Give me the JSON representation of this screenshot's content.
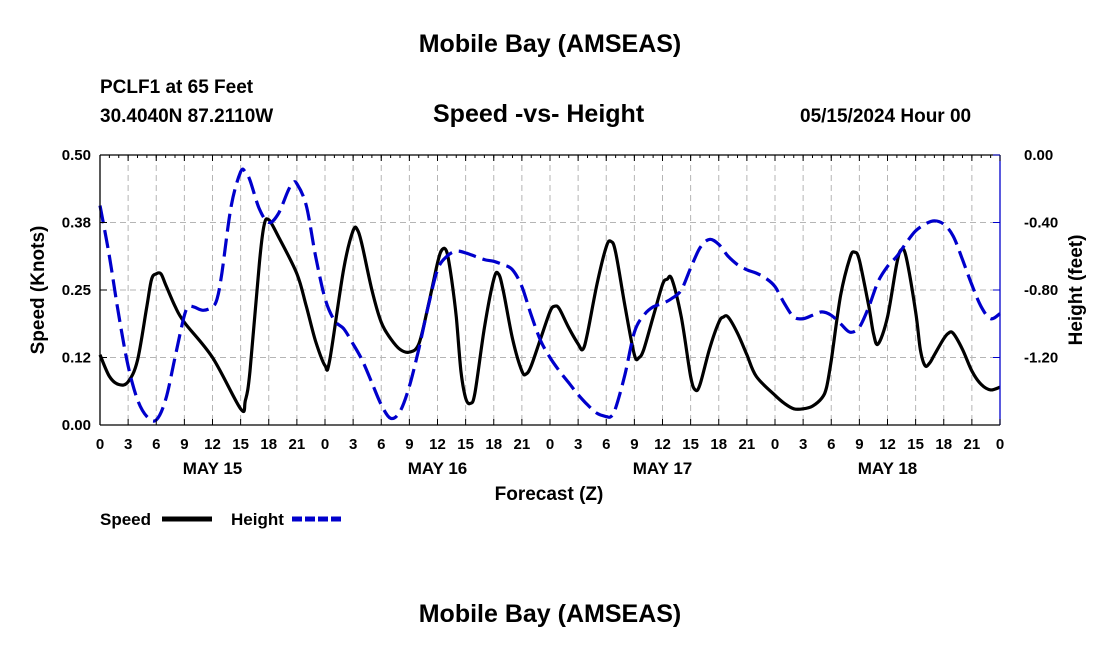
{
  "page": {
    "title_top": "Mobile Bay (AMSEAS)",
    "title_bottom": "Mobile Bay (AMSEAS)",
    "station": "PCLF1 at 65 Feet",
    "coords": "30.4040N  87.2110W",
    "datetime": "05/15/2024 Hour 00"
  },
  "chart_data": {
    "type": "line",
    "title": "Speed -vs- Height",
    "xlabel": "Forecast (Z)",
    "ylabel_left": "Speed (Knots)",
    "ylabel_right": "Height (feet)",
    "x_range_hours": [
      0,
      96
    ],
    "x_tick_step_hours": 3,
    "x_tick_labels": [
      "0",
      "3",
      "6",
      "9",
      "12",
      "15",
      "18",
      "21",
      "0",
      "3",
      "6",
      "9",
      "12",
      "15",
      "18",
      "21",
      "0",
      "3",
      "6",
      "9",
      "12",
      "15",
      "18",
      "21",
      "0",
      "3",
      "6",
      "9",
      "12",
      "15",
      "18",
      "21",
      "0"
    ],
    "date_labels": [
      {
        "hour": 12,
        "label": "MAY 15"
      },
      {
        "hour": 36,
        "label": "MAY 16"
      },
      {
        "hour": 60,
        "label": "MAY 17"
      },
      {
        "hour": 84,
        "label": "MAY 18"
      }
    ],
    "ylim_left": [
      0,
      0.5
    ],
    "yticks_left": [
      "0.00",
      "0.12",
      "0.25",
      "0.38",
      "0.50"
    ],
    "ylim_right": [
      -1.6,
      0.0
    ],
    "yticks_right": [
      "-1.20",
      "-0.80",
      "-0.40",
      "0.00"
    ],
    "grid": true,
    "legend_position": "bottom-left",
    "series": [
      {
        "name": "Speed",
        "axis": "left",
        "color": "#000000",
        "style": "solid",
        "points": [
          [
            0,
            0.13
          ],
          [
            1,
            0.09
          ],
          [
            2,
            0.075
          ],
          [
            3,
            0.08
          ],
          [
            4,
            0.12
          ],
          [
            5,
            0.22
          ],
          [
            5.5,
            0.27
          ],
          [
            6,
            0.28
          ],
          [
            6.5,
            0.28
          ],
          [
            7,
            0.26
          ],
          [
            8,
            0.22
          ],
          [
            9,
            0.19
          ],
          [
            12,
            0.125
          ],
          [
            15,
            0.03
          ],
          [
            15.5,
            0.045
          ],
          [
            16,
            0.1
          ],
          [
            17,
            0.3
          ],
          [
            17.5,
            0.37
          ],
          [
            18,
            0.38
          ],
          [
            19,
            0.35
          ],
          [
            21,
            0.28
          ],
          [
            22,
            0.22
          ],
          [
            23,
            0.155
          ],
          [
            24,
            0.11
          ],
          [
            24.5,
            0.12
          ],
          [
            26,
            0.29
          ],
          [
            27,
            0.36
          ],
          [
            27.5,
            0.36
          ],
          [
            28,
            0.33
          ],
          [
            29,
            0.25
          ],
          [
            30,
            0.19
          ],
          [
            31,
            0.16
          ],
          [
            32,
            0.14
          ],
          [
            33,
            0.135
          ],
          [
            34,
            0.15
          ],
          [
            35,
            0.22
          ],
          [
            36,
            0.3
          ],
          [
            36.5,
            0.325
          ],
          [
            37,
            0.32
          ],
          [
            37.5,
            0.27
          ],
          [
            38,
            0.2
          ],
          [
            38.5,
            0.1
          ],
          [
            39,
            0.05
          ],
          [
            39.5,
            0.04
          ],
          [
            40,
            0.06
          ],
          [
            41,
            0.18
          ],
          [
            42,
            0.27
          ],
          [
            42.5,
            0.28
          ],
          [
            43,
            0.25
          ],
          [
            44,
            0.16
          ],
          [
            45,
            0.1
          ],
          [
            45.5,
            0.095
          ],
          [
            46,
            0.11
          ],
          [
            47,
            0.16
          ],
          [
            48,
            0.21
          ],
          [
            48.5,
            0.22
          ],
          [
            49,
            0.215
          ],
          [
            50,
            0.18
          ],
          [
            51,
            0.15
          ],
          [
            51.5,
            0.14
          ],
          [
            52,
            0.17
          ],
          [
            53,
            0.26
          ],
          [
            54,
            0.33
          ],
          [
            54.5,
            0.34
          ],
          [
            55,
            0.32
          ],
          [
            56,
            0.22
          ],
          [
            57,
            0.13
          ],
          [
            57.5,
            0.125
          ],
          [
            58,
            0.14
          ],
          [
            59,
            0.2
          ],
          [
            60,
            0.26
          ],
          [
            60.5,
            0.27
          ],
          [
            61,
            0.27
          ],
          [
            62,
            0.2
          ],
          [
            63,
            0.09
          ],
          [
            63.5,
            0.065
          ],
          [
            64,
            0.075
          ],
          [
            65,
            0.14
          ],
          [
            66,
            0.19
          ],
          [
            66.5,
            0.2
          ],
          [
            67,
            0.2
          ],
          [
            68,
            0.17
          ],
          [
            69,
            0.13
          ],
          [
            70,
            0.09
          ],
          [
            72,
            0.055
          ],
          [
            73,
            0.04
          ],
          [
            74,
            0.03
          ],
          [
            75,
            0.03
          ],
          [
            76,
            0.035
          ],
          [
            77,
            0.05
          ],
          [
            77.5,
            0.07
          ],
          [
            78,
            0.12
          ],
          [
            79,
            0.24
          ],
          [
            80,
            0.31
          ],
          [
            80.5,
            0.32
          ],
          [
            81,
            0.305
          ],
          [
            82,
            0.22
          ],
          [
            82.5,
            0.17
          ],
          [
            83,
            0.15
          ],
          [
            84,
            0.2
          ],
          [
            85,
            0.3
          ],
          [
            85.5,
            0.325
          ],
          [
            86,
            0.31
          ],
          [
            87,
            0.21
          ],
          [
            87.5,
            0.14
          ],
          [
            88,
            0.11
          ],
          [
            88.5,
            0.115
          ],
          [
            89,
            0.13
          ],
          [
            90,
            0.16
          ],
          [
            90.5,
            0.17
          ],
          [
            91,
            0.17
          ],
          [
            92,
            0.14
          ],
          [
            93,
            0.1
          ],
          [
            94,
            0.075
          ],
          [
            95,
            0.065
          ],
          [
            96,
            0.07
          ]
        ]
      },
      {
        "name": "Height",
        "axis": "right",
        "color": "#0000cc",
        "style": "dashed",
        "points": [
          [
            0,
            -0.3
          ],
          [
            1,
            -0.6
          ],
          [
            2,
            -0.95
          ],
          [
            3,
            -1.25
          ],
          [
            4,
            -1.45
          ],
          [
            5,
            -1.55
          ],
          [
            6,
            -1.57
          ],
          [
            7,
            -1.45
          ],
          [
            8,
            -1.2
          ],
          [
            9,
            -0.95
          ],
          [
            9.5,
            -0.9
          ],
          [
            10,
            -0.9
          ],
          [
            11,
            -0.92
          ],
          [
            12,
            -0.9
          ],
          [
            12.5,
            -0.85
          ],
          [
            13,
            -0.7
          ],
          [
            14,
            -0.3
          ],
          [
            15,
            -0.1
          ],
          [
            15.5,
            -0.1
          ],
          [
            16,
            -0.15
          ],
          [
            17,
            -0.32
          ],
          [
            18,
            -0.4
          ],
          [
            19,
            -0.35
          ],
          [
            20,
            -0.22
          ],
          [
            20.5,
            -0.17
          ],
          [
            21,
            -0.17
          ],
          [
            22,
            -0.3
          ],
          [
            23,
            -0.6
          ],
          [
            24,
            -0.85
          ],
          [
            25,
            -0.98
          ],
          [
            26,
            -1.03
          ],
          [
            27,
            -1.12
          ],
          [
            28,
            -1.22
          ],
          [
            29,
            -1.35
          ],
          [
            30,
            -1.48
          ],
          [
            31,
            -1.56
          ],
          [
            32,
            -1.52
          ],
          [
            33,
            -1.37
          ],
          [
            34,
            -1.15
          ],
          [
            35,
            -0.9
          ],
          [
            36,
            -0.68
          ],
          [
            37,
            -0.6
          ],
          [
            38,
            -0.57
          ],
          [
            39,
            -0.58
          ],
          [
            40,
            -0.6
          ],
          [
            41,
            -0.62
          ],
          [
            42,
            -0.63
          ],
          [
            43,
            -0.65
          ],
          [
            44,
            -0.68
          ],
          [
            45,
            -0.78
          ],
          [
            46,
            -0.95
          ],
          [
            47,
            -1.1
          ],
          [
            48,
            -1.2
          ],
          [
            49,
            -1.28
          ],
          [
            50,
            -1.35
          ],
          [
            51,
            -1.42
          ],
          [
            52,
            -1.48
          ],
          [
            53,
            -1.53
          ],
          [
            54,
            -1.55
          ],
          [
            54.5,
            -1.55
          ],
          [
            55,
            -1.5
          ],
          [
            56,
            -1.3
          ],
          [
            57,
            -1.05
          ],
          [
            58,
            -0.95
          ],
          [
            59,
            -0.9
          ],
          [
            60,
            -0.88
          ],
          [
            61,
            -0.85
          ],
          [
            62,
            -0.8
          ],
          [
            63,
            -0.67
          ],
          [
            64,
            -0.55
          ],
          [
            65,
            -0.5
          ],
          [
            66,
            -0.53
          ],
          [
            67,
            -0.6
          ],
          [
            68,
            -0.65
          ],
          [
            69,
            -0.68
          ],
          [
            70,
            -0.7
          ],
          [
            71,
            -0.73
          ],
          [
            72,
            -0.78
          ],
          [
            73,
            -0.88
          ],
          [
            74,
            -0.96
          ],
          [
            75,
            -0.97
          ],
          [
            76,
            -0.95
          ],
          [
            77,
            -0.93
          ],
          [
            78,
            -0.95
          ],
          [
            79,
            -1.0
          ],
          [
            80,
            -1.05
          ],
          [
            81,
            -1.02
          ],
          [
            82,
            -0.9
          ],
          [
            83,
            -0.75
          ],
          [
            84,
            -0.66
          ],
          [
            85,
            -0.6
          ],
          [
            86,
            -0.52
          ],
          [
            87,
            -0.45
          ],
          [
            88,
            -0.41
          ],
          [
            89,
            -0.39
          ],
          [
            90,
            -0.41
          ],
          [
            91,
            -0.48
          ],
          [
            92,
            -0.62
          ],
          [
            93,
            -0.77
          ],
          [
            94,
            -0.9
          ],
          [
            95,
            -0.97
          ],
          [
            96,
            -0.94
          ]
        ]
      }
    ]
  }
}
